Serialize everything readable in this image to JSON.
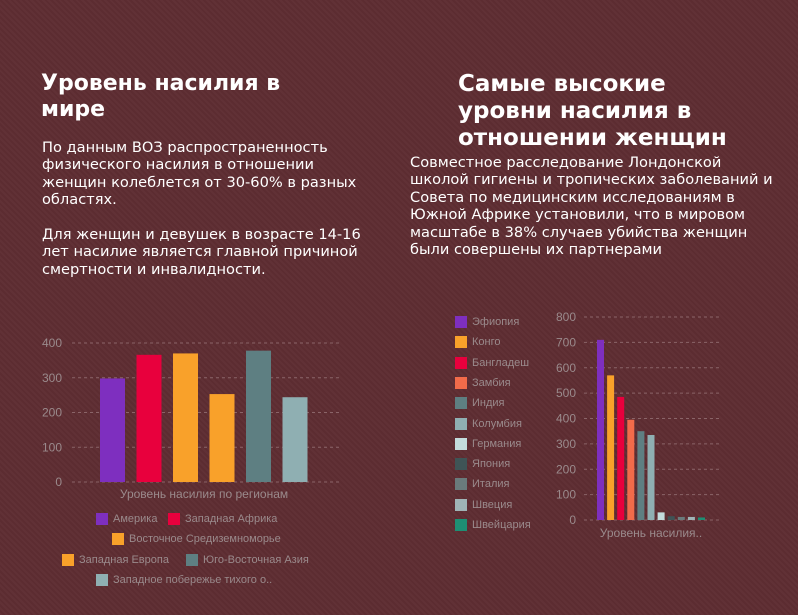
{
  "left": {
    "title": "Уровень насилия в мире",
    "paragraph1": "По данным ВОЗ распространенность физического насилия в отношении женщин колеблется от 30-60% в разных областях.",
    "paragraph2": "Для женщин и девушек в возрасте 14-16 лет насилие является главной причиной смертности и инвалидности."
  },
  "right": {
    "title": "Самые высокие уровни насилия в отношении женщин",
    "paragraph1": "Совместное расследование Лондонской школой гигиены и тропических заболеваний и Совета по медицинским исследованиям в Южной Африке установили, что в мировом масштабе в 38% случаев убийства женщин были совершены их партнерами"
  },
  "chart_data": [
    {
      "type": "bar",
      "title": "",
      "xlabel": "Уровень насилия по регионам",
      "ylabel": "",
      "ylim": [
        0,
        400
      ],
      "yticks": [
        0,
        100,
        200,
        300,
        400
      ],
      "grid": true,
      "legend_position": "bottom",
      "categories": [
        "Уровень насилия по регионам"
      ],
      "series": [
        {
          "name": "Америка",
          "values": [
            298
          ],
          "color": "#7e2fbf"
        },
        {
          "name": "Западная Африка",
          "values": [
            366
          ],
          "color": "#e8003d"
        },
        {
          "name": "Восточное Средиземноморье",
          "values": [
            370
          ],
          "color": "#f9a12a"
        },
        {
          "name": "Западная Европа",
          "values": [
            253
          ],
          "color": "#f9a12a"
        },
        {
          "name": "Юго-Восточная Азия",
          "values": [
            378
          ],
          "color": "#5e7f82"
        },
        {
          "name": "Западное побережье тихого о..",
          "values": [
            244
          ],
          "color": "#8fafb2"
        }
      ]
    },
    {
      "type": "bar",
      "title": "",
      "xlabel": "Уровень насилия..",
      "ylabel": "",
      "ylim": [
        0,
        800
      ],
      "yticks": [
        0,
        100,
        200,
        300,
        400,
        500,
        600,
        700,
        800
      ],
      "grid": true,
      "legend_position": "left",
      "categories": [
        "Уровень насилия.."
      ],
      "series": [
        {
          "name": "Эфиопия",
          "values": [
            710
          ],
          "color": "#7e2fbf"
        },
        {
          "name": "Конго",
          "values": [
            570
          ],
          "color": "#f9a12a"
        },
        {
          "name": "Бангладеш",
          "values": [
            485
          ],
          "color": "#e8003d"
        },
        {
          "name": "Замбия",
          "values": [
            395
          ],
          "color": "#f26b4a"
        },
        {
          "name": "Индия",
          "values": [
            350
          ],
          "color": "#5e7f82"
        },
        {
          "name": "Колумбия",
          "values": [
            335
          ],
          "color": "#8fafb2"
        },
        {
          "name": "Германия",
          "values": [
            30
          ],
          "color": "#c3dcdc"
        },
        {
          "name": "Япония",
          "values": [
            15
          ],
          "color": "#3f5456"
        },
        {
          "name": "Италия",
          "values": [
            12
          ],
          "color": "#6a7b7c"
        },
        {
          "name": "Швеция",
          "values": [
            12
          ],
          "color": "#9fb4b6"
        },
        {
          "name": "Швейцария",
          "values": [
            10
          ],
          "color": "#1e8f74"
        }
      ]
    }
  ]
}
